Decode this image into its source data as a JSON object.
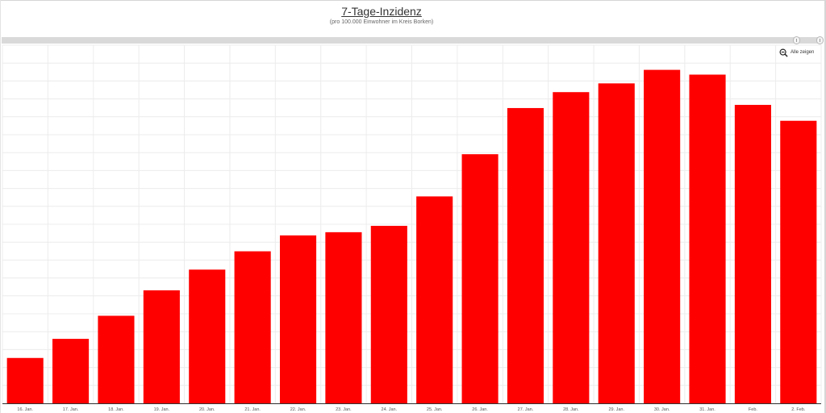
{
  "chart_data": {
    "type": "bar",
    "title": "7-Tage-Inzidenz",
    "subtitle": "(pro 100.000 Einwohner im Kreis Borken)",
    "categories": [
      "16. Jan.",
      "17. Jan.",
      "18. Jan.",
      "19. Jan.",
      "20. Jan.",
      "21. Jan.",
      "22. Jan.",
      "23. Jan.",
      "24. Jan.",
      "25. Jan.",
      "26. Jan.",
      "27. Jan.",
      "28. Jan.",
      "29. Jan.",
      "30. Jan.",
      "31. Jan.",
      "Feb.",
      "2. Feb."
    ],
    "values": [
      57,
      81,
      110,
      142,
      168,
      191,
      211,
      215,
      223,
      260,
      313,
      371,
      391,
      402,
      419,
      413,
      375,
      355
    ],
    "ylim": [
      0,
      450
    ],
    "bar_color": "#ff0000",
    "grid": true
  },
  "controls": {
    "reset_zoom_label": "Alle zeigen",
    "reset_zoom_icon": "zoom-out-icon",
    "navigator_handle_icon": "drag-handle-icon"
  },
  "colors": {
    "bar": "#ff0000",
    "grid": "#ececec",
    "axis": "#333333",
    "navigator": "#d9d9d9"
  }
}
